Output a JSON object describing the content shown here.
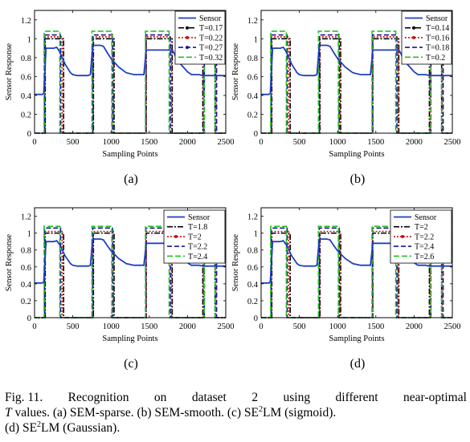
{
  "chart_data": [
    {
      "type": "line",
      "panel_label": "(a)",
      "xlabel": "Sampling Points",
      "ylabel": "Sensor Response",
      "xlim": [
        0,
        2500
      ],
      "ylim": [
        0,
        1.3
      ],
      "xticks": [
        0,
        500,
        1000,
        1500,
        2000,
        2500
      ],
      "yticks": [
        0,
        0.2,
        0.4,
        0.6,
        0.8,
        1,
        1.2
      ],
      "legend_position": "top-right",
      "sensor": {
        "name": "Sensor",
        "color": "#1f3fbf",
        "x": [
          0,
          100,
          120,
          150,
          200,
          250,
          290,
          330,
          400,
          470,
          500,
          560,
          700,
          730,
          760,
          800,
          860,
          900,
          960,
          1000,
          1100,
          1200,
          1300,
          1400,
          1430,
          1460,
          1500,
          1600,
          1700,
          1750,
          1800,
          1830,
          1850,
          1880,
          1900,
          2000,
          2050,
          2080,
          2100,
          2150,
          2200,
          2250,
          2290,
          2320,
          2380,
          2420,
          2500
        ],
        "y": [
          0.41,
          0.41,
          0.42,
          0.9,
          0.9,
          0.9,
          0.91,
          0.86,
          0.73,
          0.64,
          0.62,
          0.61,
          0.61,
          0.62,
          0.93,
          0.93,
          0.93,
          0.92,
          0.84,
          0.79,
          0.7,
          0.64,
          0.62,
          0.62,
          0.62,
          0.88,
          0.88,
          0.88,
          0.88,
          0.88,
          0.88,
          0.84,
          0.8,
          0.76,
          0.74,
          0.65,
          0.62,
          0.62,
          0.62,
          0.62,
          0.61,
          0.61,
          0.61,
          0.61,
          0.61,
          0.61,
          0.61
        ]
      },
      "series": [
        {
          "name": "T=0.17",
          "color": "#000000",
          "dash": "7 2 2 2",
          "level": 1.0,
          "marker": "dot",
          "pulses": [
            [
              140,
              380
            ],
            [
              770,
              1040
            ],
            [
              1460,
              1800
            ],
            [
              2200,
              2360
            ]
          ]
        },
        {
          "name": "T=0.22",
          "color": "#cc1010",
          "dash": "2 2",
          "level": 1.02,
          "marker": "dot",
          "pulses": [
            [
              135,
              360
            ],
            [
              765,
              1030
            ],
            [
              1460,
              1790
            ],
            [
              2210,
              2370
            ]
          ]
        },
        {
          "name": "T=0.27",
          "color": "#1414a0",
          "dash": "6 3",
          "level": 1.04,
          "marker": "dot",
          "pulses": [
            [
              130,
              340
            ],
            [
              760,
              1020
            ],
            [
              1455,
              1775
            ],
            [
              2220,
              2380
            ]
          ]
        },
        {
          "name": "T=0.32",
          "color": "#22c222",
          "dash": "7 3",
          "level": 1.08,
          "marker": "none",
          "pulses": [
            [
              125,
              330
            ],
            [
              750,
              1010
            ],
            [
              1450,
              1760
            ],
            [
              2220,
              2360
            ]
          ]
        }
      ]
    },
    {
      "type": "line",
      "panel_label": "(b)",
      "xlabel": "Sampling Points",
      "ylabel": "Sensor Response",
      "xlim": [
        0,
        2500
      ],
      "ylim": [
        0,
        1.3
      ],
      "xticks": [
        0,
        500,
        1000,
        1500,
        2000,
        2500
      ],
      "yticks": [
        0,
        0.2,
        0.4,
        0.6,
        0.8,
        1,
        1.2
      ],
      "legend_position": "top-right",
      "sensor": {
        "name": "Sensor",
        "color": "#1f3fbf",
        "x": [
          0,
          100,
          120,
          150,
          200,
          250,
          290,
          330,
          400,
          470,
          500,
          560,
          700,
          730,
          760,
          800,
          860,
          900,
          960,
          1000,
          1100,
          1200,
          1300,
          1400,
          1430,
          1460,
          1500,
          1600,
          1700,
          1750,
          1800,
          1830,
          1850,
          1880,
          1900,
          2000,
          2050,
          2080,
          2100,
          2150,
          2200,
          2250,
          2290,
          2320,
          2380,
          2420,
          2500
        ],
        "y": [
          0.41,
          0.41,
          0.42,
          0.9,
          0.9,
          0.9,
          0.91,
          0.86,
          0.73,
          0.64,
          0.62,
          0.61,
          0.61,
          0.62,
          0.93,
          0.93,
          0.93,
          0.92,
          0.84,
          0.79,
          0.7,
          0.64,
          0.62,
          0.62,
          0.62,
          0.88,
          0.88,
          0.88,
          0.88,
          0.88,
          0.88,
          0.84,
          0.8,
          0.76,
          0.74,
          0.65,
          0.62,
          0.62,
          0.62,
          0.62,
          0.61,
          0.61,
          0.61,
          0.61,
          0.61,
          0.61,
          0.61
        ]
      },
      "series": [
        {
          "name": "T=0.14",
          "color": "#000000",
          "dash": "7 2 2 2",
          "level": 1.0,
          "marker": "dot",
          "pulses": [
            [
              140,
              380
            ],
            [
              770,
              1040
            ],
            [
              1460,
              1800
            ],
            [
              2200,
              2360
            ]
          ]
        },
        {
          "name": "T=0.16",
          "color": "#cc1010",
          "dash": "2 2",
          "level": 1.02,
          "marker": "dot",
          "pulses": [
            [
              135,
              360
            ],
            [
              765,
              1030
            ],
            [
              1460,
              1790
            ],
            [
              2210,
              2370
            ]
          ]
        },
        {
          "name": "T=0.18",
          "color": "#1414a0",
          "dash": "6 3",
          "level": 1.04,
          "marker": "none",
          "pulses": [
            [
              130,
              340
            ],
            [
              760,
              1020
            ],
            [
              1455,
              1775
            ],
            [
              2220,
              2380
            ]
          ]
        },
        {
          "name": "T=0.2",
          "color": "#22c222",
          "dash": "7 3",
          "level": 1.08,
          "marker": "none",
          "pulses": [
            [
              125,
              330
            ],
            [
              750,
              1010
            ],
            [
              1450,
              1760
            ],
            [
              2220,
              2360
            ]
          ]
        }
      ]
    },
    {
      "type": "line",
      "panel_label": "(c)",
      "xlabel": "Sampling Points",
      "ylabel": "Sensor Response",
      "xlim": [
        0,
        2500
      ],
      "ylim": [
        0,
        1.3
      ],
      "xticks": [
        0,
        500,
        1000,
        1500,
        2000,
        2500
      ],
      "yticks": [
        0,
        0.2,
        0.4,
        0.6,
        0.8,
        1,
        1.2
      ],
      "legend_position": "right",
      "sensor": {
        "name": "Sensor",
        "color": "#1f3fbf",
        "x": [
          0,
          100,
          120,
          150,
          200,
          250,
          290,
          330,
          400,
          470,
          500,
          560,
          700,
          730,
          760,
          800,
          860,
          900,
          960,
          1000,
          1100,
          1200,
          1300,
          1400,
          1430,
          1460,
          1500,
          1600,
          1700,
          1750,
          1800,
          1830,
          1850,
          1880,
          1900,
          2000,
          2050,
          2080,
          2100,
          2150,
          2200,
          2250,
          2290,
          2320,
          2380,
          2420,
          2500
        ],
        "y": [
          0.41,
          0.41,
          0.42,
          0.9,
          0.9,
          0.9,
          0.91,
          0.86,
          0.73,
          0.64,
          0.62,
          0.61,
          0.61,
          0.62,
          0.93,
          0.93,
          0.93,
          0.92,
          0.84,
          0.79,
          0.7,
          0.64,
          0.62,
          0.62,
          0.62,
          0.88,
          0.88,
          0.88,
          0.88,
          0.88,
          0.88,
          0.84,
          0.8,
          0.76,
          0.74,
          0.65,
          0.62,
          0.62,
          0.62,
          0.62,
          0.61,
          0.61,
          0.61,
          0.61,
          0.61,
          0.61,
          0.61
        ]
      },
      "series": [
        {
          "name": "T=1.8",
          "color": "#000000",
          "dash": "7 2 2 2",
          "level": 1.0,
          "marker": "none",
          "pulses": [
            [
              140,
              380
            ],
            [
              770,
              1040
            ],
            [
              1460,
              1800
            ],
            [
              2200,
              2360
            ]
          ]
        },
        {
          "name": "T=2",
          "color": "#cc1010",
          "dash": "2 2",
          "level": 1.02,
          "marker": "dot",
          "pulses": [
            [
              135,
              360
            ],
            [
              765,
              1030
            ],
            [
              1460,
              1790
            ],
            [
              2210,
              2370
            ]
          ]
        },
        {
          "name": "T=2.2",
          "color": "#1414a0",
          "dash": "6 3",
          "level": 1.06,
          "marker": "none",
          "pulses": [
            [
              130,
              340
            ],
            [
              760,
              1020
            ],
            [
              1455,
              1775
            ],
            [
              2220,
              2380
            ]
          ]
        },
        {
          "name": "T=2.4",
          "color": "#22c222",
          "dash": "7 3",
          "level": 1.08,
          "marker": "none",
          "pulses": [
            [
              125,
              330
            ],
            [
              750,
              1010
            ],
            [
              1450,
              1760
            ],
            [
              2220,
              2360
            ]
          ]
        }
      ]
    },
    {
      "type": "line",
      "panel_label": "(d)",
      "xlabel": "Sampling Points",
      "ylabel": "Sensor Response",
      "xlim": [
        0,
        2500
      ],
      "ylim": [
        0,
        1.3
      ],
      "xticks": [
        0,
        500,
        1000,
        1500,
        2000,
        2500
      ],
      "yticks": [
        0,
        0.2,
        0.4,
        0.6,
        0.8,
        1,
        1.2
      ],
      "legend_position": "right",
      "sensor": {
        "name": "Sensor",
        "color": "#1f3fbf",
        "x": [
          0,
          100,
          120,
          150,
          200,
          250,
          290,
          330,
          400,
          470,
          500,
          560,
          700,
          730,
          760,
          800,
          860,
          900,
          960,
          1000,
          1100,
          1200,
          1300,
          1400,
          1430,
          1460,
          1500,
          1600,
          1700,
          1750,
          1800,
          1830,
          1850,
          1880,
          1900,
          2000,
          2050,
          2080,
          2100,
          2150,
          2200,
          2250,
          2290,
          2320,
          2380,
          2420,
          2500
        ],
        "y": [
          0.41,
          0.41,
          0.42,
          0.9,
          0.9,
          0.9,
          0.91,
          0.86,
          0.73,
          0.64,
          0.62,
          0.61,
          0.61,
          0.62,
          0.93,
          0.93,
          0.93,
          0.92,
          0.84,
          0.79,
          0.7,
          0.64,
          0.62,
          0.62,
          0.62,
          0.88,
          0.88,
          0.88,
          0.88,
          0.88,
          0.88,
          0.84,
          0.8,
          0.76,
          0.74,
          0.65,
          0.62,
          0.62,
          0.62,
          0.62,
          0.61,
          0.61,
          0.61,
          0.61,
          0.61,
          0.61,
          0.61
        ]
      },
      "series": [
        {
          "name": "T=2",
          "color": "#000000",
          "dash": "7 2 2 2",
          "level": 1.0,
          "marker": "none",
          "pulses": [
            [
              140,
              380
            ],
            [
              770,
              1040
            ],
            [
              1460,
              1800
            ],
            [
              2200,
              2360
            ]
          ]
        },
        {
          "name": "T=2.2",
          "color": "#cc1010",
          "dash": "2 2",
          "level": 1.02,
          "marker": "dot",
          "pulses": [
            [
              135,
              360
            ],
            [
              765,
              1030
            ],
            [
              1460,
              1790
            ],
            [
              2210,
              2370
            ]
          ]
        },
        {
          "name": "T=2.4",
          "color": "#1414a0",
          "dash": "6 3",
          "level": 1.06,
          "marker": "none",
          "pulses": [
            [
              130,
              340
            ],
            [
              760,
              1020
            ],
            [
              1455,
              1775
            ],
            [
              2220,
              2380
            ]
          ]
        },
        {
          "name": "T=2.6",
          "color": "#22c222",
          "dash": "7 3",
          "level": 1.08,
          "marker": "none",
          "pulses": [
            [
              125,
              330
            ],
            [
              750,
              1010
            ],
            [
              1450,
              1760
            ],
            [
              2220,
              2360
            ]
          ]
        }
      ]
    }
  ],
  "caption": {
    "fig_label": "Fig. 11.",
    "w1": "Recognition",
    "w2": "on",
    "w3": "dataset",
    "w4": "2",
    "w5": "using",
    "w6": "different",
    "w7": "near-optimal",
    "t_var": "T",
    "line2a": " values. (a) SEM-sparse. (b) SEM-smooth. (c) SE",
    "sup1": "2",
    "line2b": "LM (sigmoid).",
    "line3a": "(d) SE",
    "sup2": "2",
    "line3b": "LM (Gaussian)."
  }
}
